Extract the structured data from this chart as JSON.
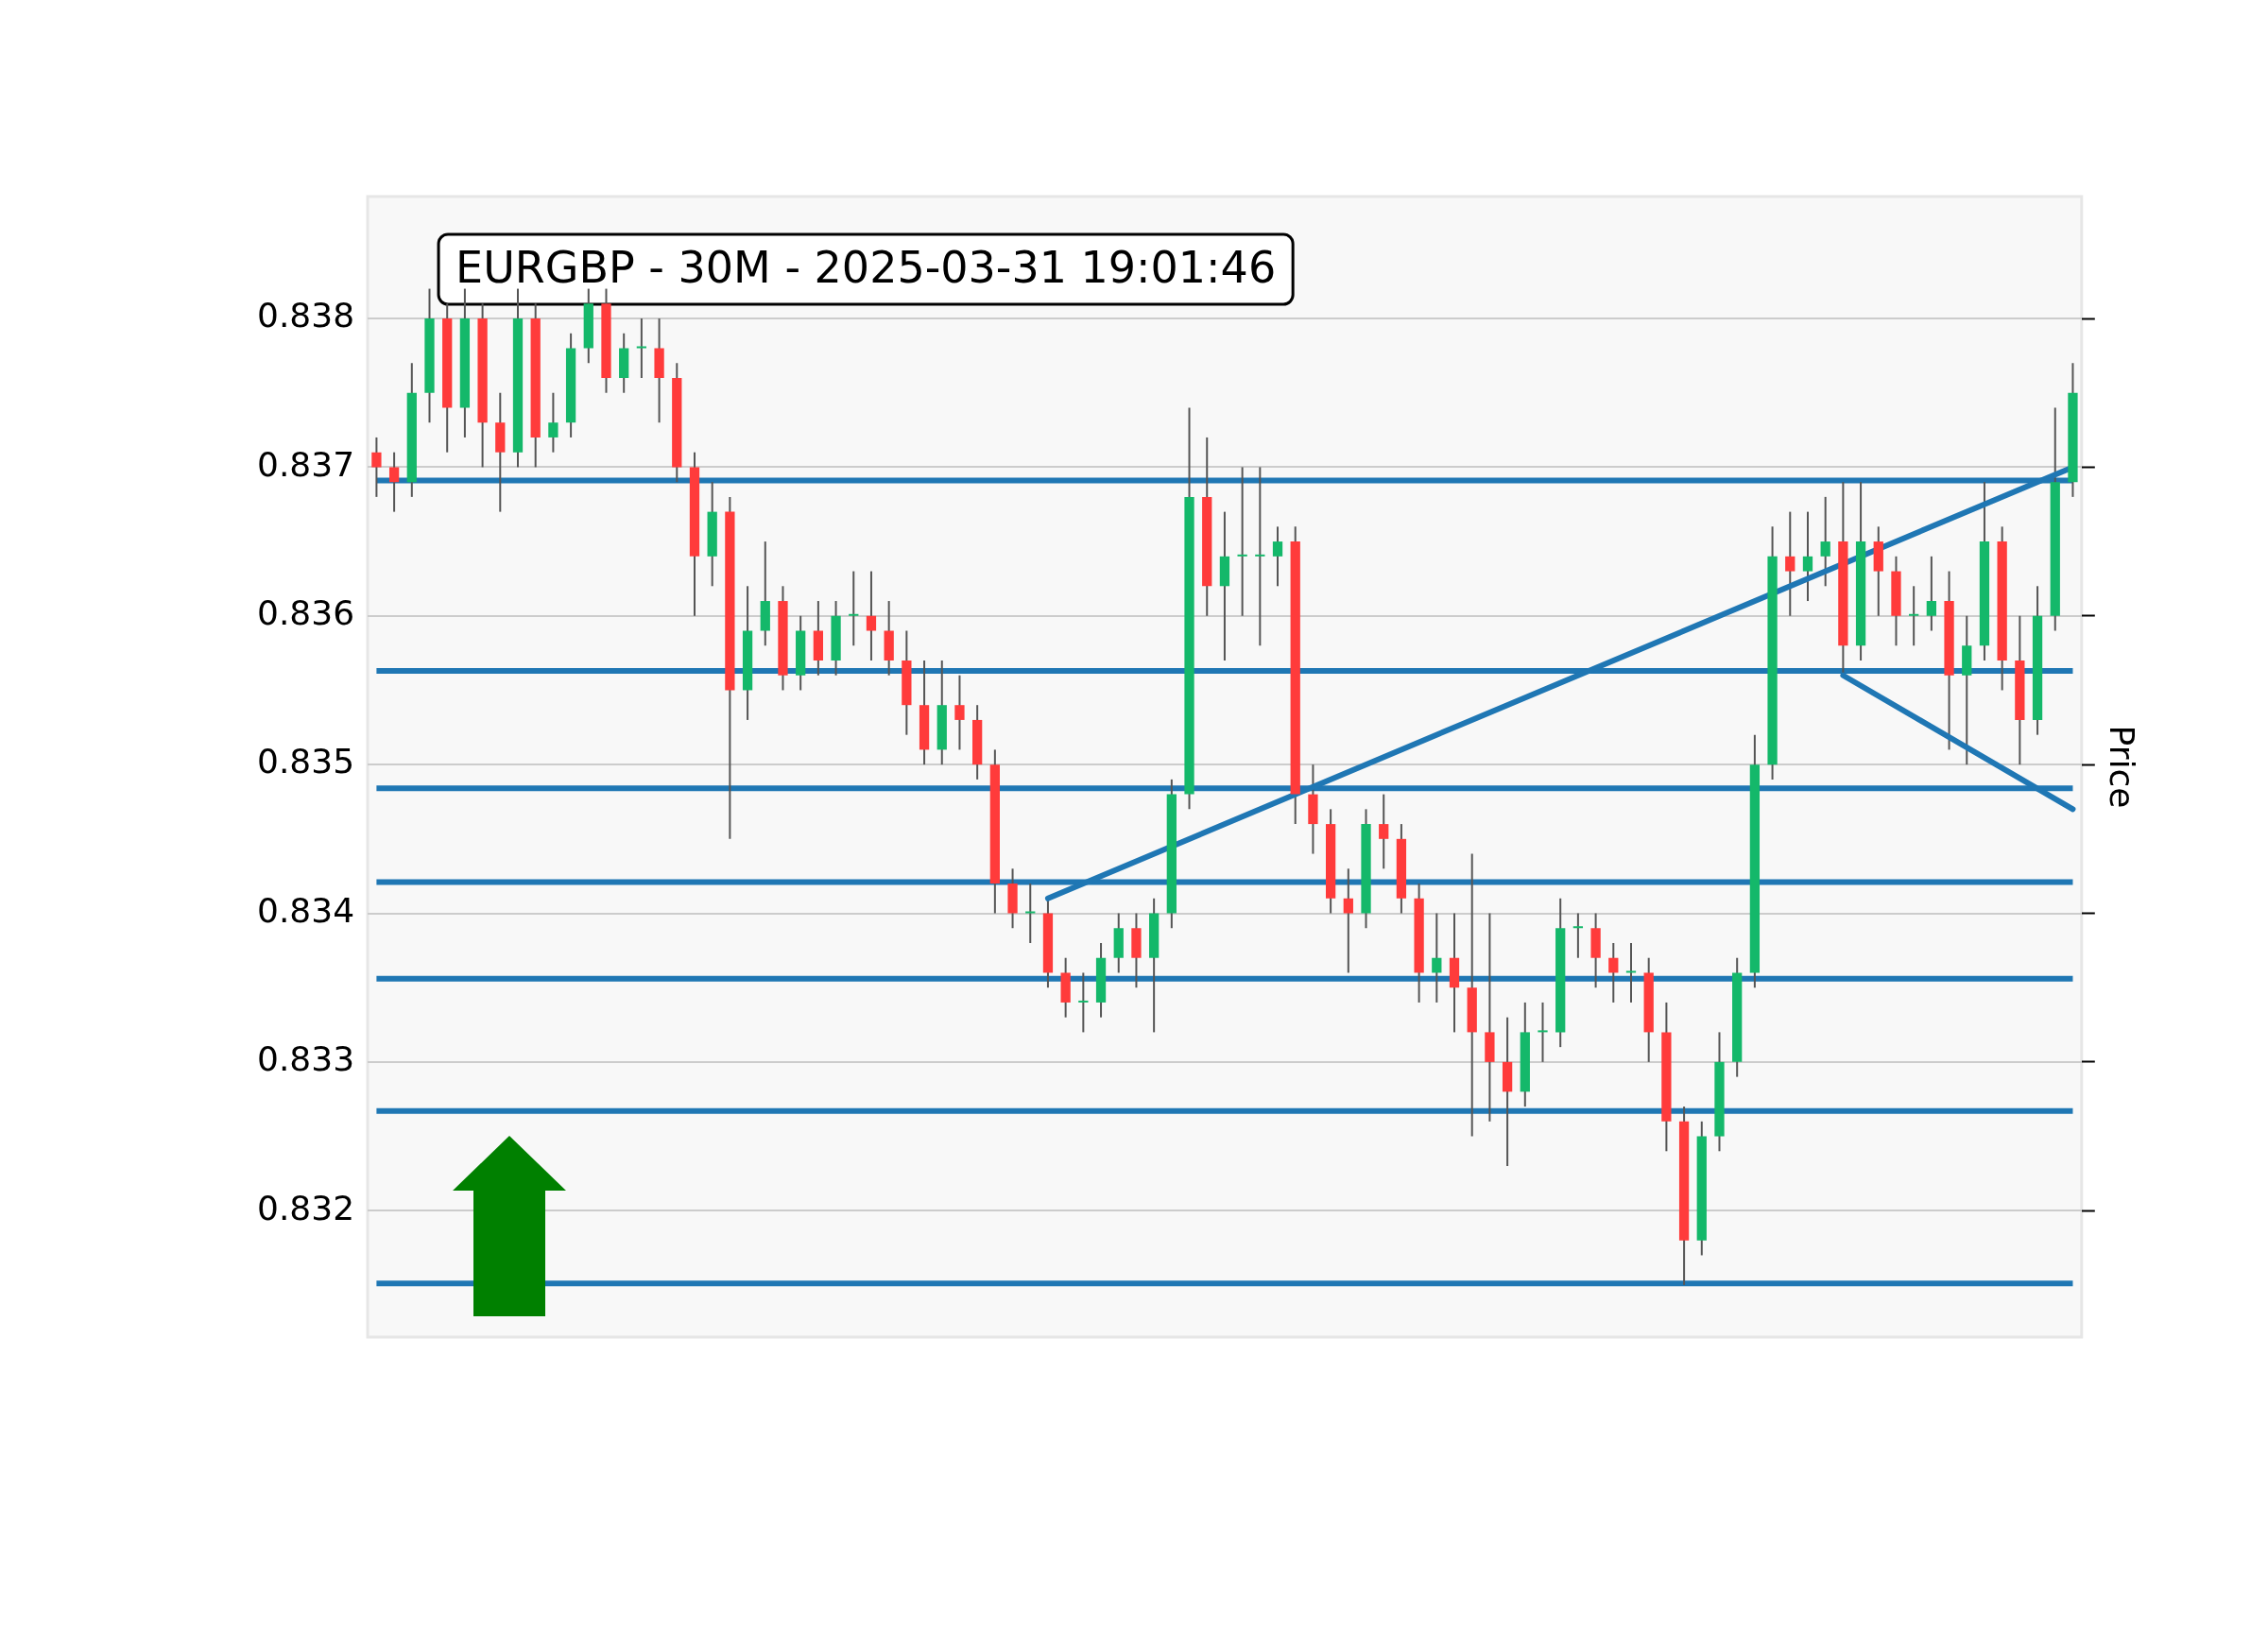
{
  "chart_data": {
    "type": "candlestick",
    "title": "EURGBP - 30M - 2025-03-31 19:01:46",
    "ylabel": "Price",
    "tick_labels": "y",
    "grid": "y",
    "ylim": [
      0.83115,
      0.83882
    ],
    "yticks": [
      0.832,
      0.833,
      0.834,
      0.835,
      0.836,
      0.837,
      0.838
    ],
    "categories": [
      null,
      null,
      null,
      null,
      null,
      null,
      null,
      null,
      null,
      null,
      null,
      null,
      null,
      null,
      null,
      null,
      null,
      null,
      null,
      null,
      null,
      null,
      null,
      null,
      null,
      null,
      null,
      null,
      null,
      null,
      null,
      null,
      null,
      null,
      null,
      null,
      null,
      null,
      null,
      null,
      null,
      null,
      null,
      null,
      null,
      null,
      null,
      null,
      null,
      null,
      null,
      null,
      null,
      null,
      null,
      null,
      null,
      null,
      null,
      null,
      null,
      null,
      null,
      null,
      null,
      null,
      null,
      null,
      null,
      null,
      null,
      null,
      null,
      null,
      null,
      null,
      null,
      null,
      null,
      null,
      null,
      null,
      null,
      null,
      null,
      null,
      null,
      null,
      null,
      null,
      null,
      null,
      null,
      null,
      null,
      null,
      null
    ],
    "ohlc": [
      [
        0.8371,
        0.8372,
        0.8368,
        0.837
      ],
      [
        0.837,
        0.8371,
        0.8367,
        0.8369
      ],
      [
        0.8369,
        0.8377,
        0.8368,
        0.8375
      ],
      [
        0.8375,
        0.8382,
        0.8373,
        0.838
      ],
      [
        0.838,
        0.8381,
        0.8371,
        0.8374
      ],
      [
        0.8374,
        0.8382,
        0.8372,
        0.838
      ],
      [
        0.838,
        0.8381,
        0.837,
        0.8373
      ],
      [
        0.8373,
        0.8375,
        0.8367,
        0.8371
      ],
      [
        0.8371,
        0.8382,
        0.837,
        0.838
      ],
      [
        0.838,
        0.8381,
        0.837,
        0.8372
      ],
      [
        0.8372,
        0.8375,
        0.8371,
        0.8373
      ],
      [
        0.8373,
        0.8379,
        0.8372,
        0.8378
      ],
      [
        0.8378,
        0.8382,
        0.8377,
        0.8381
      ],
      [
        0.8381,
        0.8382,
        0.8375,
        0.8376
      ],
      [
        0.8376,
        0.8379,
        0.8375,
        0.8378
      ],
      [
        0.8378,
        0.838,
        0.8376,
        0.8378
      ],
      [
        0.8378,
        0.838,
        0.8373,
        0.8376
      ],
      [
        0.8376,
        0.8377,
        0.8369,
        0.837
      ],
      [
        0.837,
        0.8371,
        0.836,
        0.8364
      ],
      [
        0.8364,
        0.8369,
        0.8362,
        0.8367
      ],
      [
        0.8367,
        0.8368,
        0.8345,
        0.8355
      ],
      [
        0.8355,
        0.8362,
        0.8353,
        0.8359
      ],
      [
        0.8359,
        0.8365,
        0.8358,
        0.8361
      ],
      [
        0.8361,
        0.8362,
        0.8355,
        0.8356
      ],
      [
        0.8356,
        0.836,
        0.8355,
        0.8359
      ],
      [
        0.8359,
        0.8361,
        0.8356,
        0.8357
      ],
      [
        0.8357,
        0.8361,
        0.8356,
        0.836
      ],
      [
        0.836,
        0.8363,
        0.8358,
        0.836
      ],
      [
        0.836,
        0.8363,
        0.8357,
        0.8359
      ],
      [
        0.8359,
        0.8361,
        0.8356,
        0.8357
      ],
      [
        0.8357,
        0.8359,
        0.8352,
        0.8354
      ],
      [
        0.8354,
        0.8357,
        0.835,
        0.8351
      ],
      [
        0.8351,
        0.8357,
        0.835,
        0.8354
      ],
      [
        0.8354,
        0.8356,
        0.8351,
        0.8353
      ],
      [
        0.8353,
        0.8354,
        0.8349,
        0.835
      ],
      [
        0.835,
        0.8351,
        0.834,
        0.8342
      ],
      [
        0.8342,
        0.8343,
        0.8339,
        0.834
      ],
      [
        0.834,
        0.8342,
        0.8338,
        0.834
      ],
      [
        0.834,
        0.8341,
        0.8335,
        0.8336
      ],
      [
        0.8336,
        0.8337,
        0.8333,
        0.8334
      ],
      [
        0.8334,
        0.8336,
        0.8332,
        0.8334
      ],
      [
        0.8334,
        0.8338,
        0.8333,
        0.8337
      ],
      [
        0.8337,
        0.834,
        0.8336,
        0.8339
      ],
      [
        0.8339,
        0.834,
        0.8335,
        0.8337
      ],
      [
        0.8337,
        0.8341,
        0.8332,
        0.834
      ],
      [
        0.834,
        0.8349,
        0.8339,
        0.8348
      ],
      [
        0.8348,
        0.8374,
        0.8347,
        0.8368
      ],
      [
        0.8368,
        0.8372,
        0.836,
        0.8362
      ],
      [
        0.8362,
        0.8367,
        0.8357,
        0.8364
      ],
      [
        0.8364,
        0.837,
        0.836,
        0.8364
      ],
      [
        0.8364,
        0.837,
        0.8358,
        0.8364
      ],
      [
        0.8364,
        0.8366,
        0.8362,
        0.8365
      ],
      [
        0.8365,
        0.8366,
        0.8346,
        0.8348
      ],
      [
        0.8348,
        0.835,
        0.8344,
        0.8346
      ],
      [
        0.8346,
        0.8347,
        0.834,
        0.8341
      ],
      [
        0.8341,
        0.8343,
        0.8336,
        0.834
      ],
      [
        0.834,
        0.8347,
        0.8339,
        0.8346
      ],
      [
        0.8346,
        0.8348,
        0.8343,
        0.8345
      ],
      [
        0.8345,
        0.8346,
        0.834,
        0.8341
      ],
      [
        0.8341,
        0.8342,
        0.8334,
        0.8336
      ],
      [
        0.8336,
        0.834,
        0.8334,
        0.8337
      ],
      [
        0.8337,
        0.834,
        0.8332,
        0.8335
      ],
      [
        0.8335,
        0.8344,
        0.8325,
        0.8332
      ],
      [
        0.8332,
        0.834,
        0.8326,
        0.833
      ],
      [
        0.833,
        0.8333,
        0.8323,
        0.8328
      ],
      [
        0.8328,
        0.8334,
        0.8327,
        0.8332
      ],
      [
        0.8332,
        0.8334,
        0.833,
        0.8332
      ],
      [
        0.8332,
        0.8341,
        0.8331,
        0.8339
      ],
      [
        0.8339,
        0.834,
        0.8337,
        0.8339
      ],
      [
        0.8339,
        0.834,
        0.8335,
        0.8337
      ],
      [
        0.8337,
        0.8338,
        0.8334,
        0.8336
      ],
      [
        0.8336,
        0.8338,
        0.8334,
        0.8336
      ],
      [
        0.8336,
        0.8337,
        0.833,
        0.8332
      ],
      [
        0.8332,
        0.8334,
        0.8324,
        0.8326
      ],
      [
        0.8326,
        0.8327,
        0.8315,
        0.8318
      ],
      [
        0.8318,
        0.8326,
        0.8317,
        0.8325
      ],
      [
        0.8325,
        0.8332,
        0.8324,
        0.833
      ],
      [
        0.833,
        0.8337,
        0.8329,
        0.8336
      ],
      [
        0.8336,
        0.8352,
        0.8335,
        0.835
      ],
      [
        0.835,
        0.8366,
        0.8349,
        0.8364
      ],
      [
        0.8364,
        0.8367,
        0.836,
        0.8363
      ],
      [
        0.8363,
        0.8367,
        0.8361,
        0.8364
      ],
      [
        0.8364,
        0.8368,
        0.8362,
        0.8365
      ],
      [
        0.8365,
        0.8369,
        0.8356,
        0.8358
      ],
      [
        0.8358,
        0.8369,
        0.8357,
        0.8365
      ],
      [
        0.8365,
        0.8366,
        0.836,
        0.8363
      ],
      [
        0.8363,
        0.8364,
        0.8358,
        0.836
      ],
      [
        0.836,
        0.8362,
        0.8358,
        0.836
      ],
      [
        0.836,
        0.8364,
        0.8359,
        0.8361
      ],
      [
        0.8361,
        0.8363,
        0.8351,
        0.8356
      ],
      [
        0.8356,
        0.836,
        0.835,
        0.8358
      ],
      [
        0.8358,
        0.8369,
        0.8357,
        0.8365
      ],
      [
        0.8365,
        0.8366,
        0.8355,
        0.8357
      ],
      [
        0.8357,
        0.836,
        0.835,
        0.8353
      ],
      [
        0.8353,
        0.8362,
        0.8352,
        0.836
      ],
      [
        0.836,
        0.8374,
        0.8359,
        0.8369
      ],
      [
        0.8369,
        0.8377,
        0.8368,
        0.8375
      ]
    ],
    "series": [
      {
        "type": "line",
        "color": "#1f77b4",
        "values": [
          null,
          null,
          null,
          null,
          null,
          null,
          null,
          null,
          null,
          null,
          null,
          null,
          null,
          null,
          null,
          null,
          null,
          null,
          null,
          null,
          null,
          null,
          null,
          null,
          null,
          null,
          null,
          null,
          null,
          null,
          null,
          null,
          null,
          null,
          null,
          null,
          null,
          null,
          0.8341,
          null,
          null,
          null,
          null,
          null,
          null,
          null,
          null,
          null,
          null,
          null,
          null,
          null,
          null,
          null,
          null,
          null,
          null,
          null,
          null,
          null,
          null,
          null,
          null,
          null,
          null,
          null,
          null,
          null,
          null,
          null,
          null,
          null,
          null,
          null,
          null,
          null,
          null,
          null,
          null,
          null,
          null,
          null,
          null,
          null,
          null,
          null,
          null,
          null,
          null,
          null,
          null,
          null,
          null,
          null,
          null,
          null,
          0.837
        ]
      },
      {
        "type": "line",
        "color": "#1f77b4",
        "values": [
          null,
          null,
          null,
          null,
          null,
          null,
          null,
          null,
          null,
          null,
          null,
          null,
          null,
          null,
          null,
          null,
          null,
          null,
          null,
          null,
          null,
          null,
          null,
          null,
          null,
          null,
          null,
          null,
          null,
          null,
          null,
          null,
          null,
          null,
          null,
          null,
          null,
          null,
          null,
          null,
          null,
          null,
          null,
          null,
          null,
          null,
          null,
          null,
          null,
          null,
          null,
          null,
          null,
          null,
          null,
          null,
          null,
          null,
          null,
          null,
          null,
          null,
          null,
          null,
          null,
          null,
          null,
          null,
          null,
          null,
          null,
          null,
          null,
          null,
          null,
          null,
          null,
          null,
          null,
          null,
          null,
          null,
          null,
          0.8356,
          null,
          null,
          null,
          null,
          null,
          null,
          null,
          null,
          null,
          null,
          null,
          null,
          0.8347
        ]
      }
    ],
    "ref_lines": [
      {
        "axis": "y",
        "value": 0.83691,
        "color": "#1f77b4"
      },
      {
        "axis": "y",
        "value": 0.83563,
        "color": "#1f77b4"
      },
      {
        "axis": "y",
        "value": 0.83484,
        "color": "#1f77b4"
      },
      {
        "axis": "y",
        "value": 0.83421,
        "color": "#1f77b4"
      },
      {
        "axis": "y",
        "value": 0.83356,
        "color": "#1f77b4"
      },
      {
        "axis": "y",
        "value": 0.83267,
        "color": "#1f77b4"
      },
      {
        "axis": "y",
        "value": 0.83151,
        "color": "#1f77b4"
      }
    ]
  }
}
